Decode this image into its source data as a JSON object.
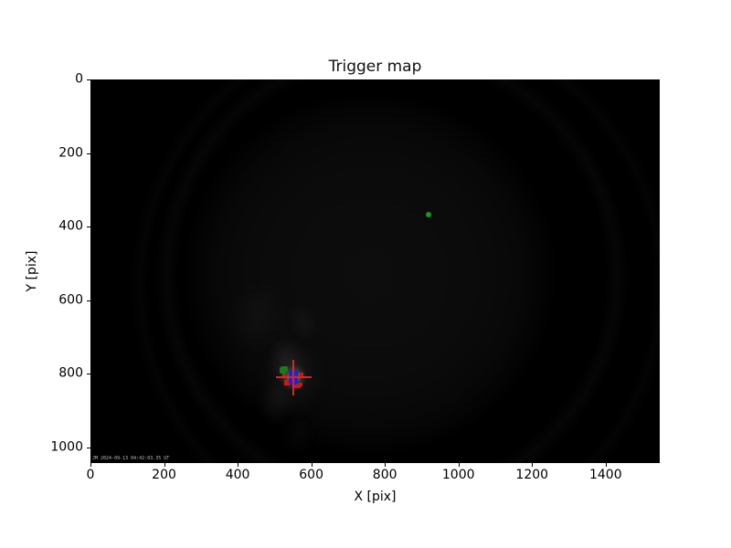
{
  "chart_data": {
    "type": "image",
    "title": "Trigger map",
    "xlabel": "X [pix]",
    "ylabel": "Y [pix]",
    "xlim": [
      0,
      1547
    ],
    "ylim": [
      0,
      1043
    ],
    "y_axis_inverted": true,
    "grid": false,
    "x_ticks": [
      0,
      200,
      400,
      600,
      800,
      1000,
      1200,
      1400
    ],
    "y_ticks": [
      0,
      200,
      400,
      600,
      800,
      1000
    ],
    "points": [
      {
        "name": "trigger-position",
        "x": 552,
        "y": 809,
        "marker": "red-crosshair-with-pixel-clusters"
      },
      {
        "name": "reference-star-point",
        "x": 920,
        "y": 368,
        "marker": "green-dot"
      }
    ],
    "overlay_text": "JM 2024-09-13 04:42:03.35 UT",
    "colors": {
      "figure_background": "#ffffff",
      "image_background": "#000000",
      "cross": "#e02222",
      "cluster_red": "#c81914",
      "cluster_blue": "#2222d0",
      "cluster_green": "#1d7a1d",
      "star_dot": "#199627",
      "overlay_text": "#b9b9b9"
    }
  }
}
